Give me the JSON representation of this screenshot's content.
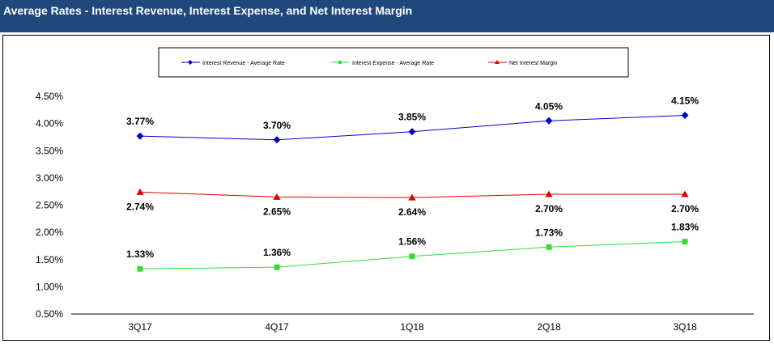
{
  "header": {
    "title": "Average Rates - Interest Revenue, Interest Expense, and Net Interest Margin"
  },
  "chart_data": {
    "type": "line",
    "title": "Average Rates - Interest Revenue, Interest Expense, and Net Interest Margin",
    "categories": [
      "3Q17",
      "4Q17",
      "1Q18",
      "2Q18",
      "3Q18"
    ],
    "ylim": [
      0.5,
      4.5
    ],
    "yticks": [
      "0.50%",
      "1.00%",
      "1.50%",
      "2.00%",
      "2.50%",
      "3.00%",
      "3.50%",
      "4.00%",
      "4.50%"
    ],
    "grid": false,
    "legend_position": "top",
    "series": [
      {
        "name": "Interest Revenue - Average Rate",
        "color": "#0000CC",
        "marker": "diamond",
        "label_pos": "above",
        "values": [
          3.77,
          3.7,
          3.85,
          4.05,
          4.15
        ],
        "labels": [
          "3.77%",
          "3.70%",
          "3.85%",
          "4.05%",
          "4.15%"
        ]
      },
      {
        "name": "Interest Expense - Average Rate",
        "color": "#33DD33",
        "marker": "square",
        "label_pos": "above",
        "values": [
          1.33,
          1.36,
          1.56,
          1.73,
          1.83
        ],
        "labels": [
          "1.33%",
          "1.36%",
          "1.56%",
          "1.73%",
          "1.83%"
        ]
      },
      {
        "name": "Net Interest Margin",
        "color": "#DD0000",
        "marker": "triangle",
        "label_pos": "below",
        "values": [
          2.74,
          2.65,
          2.64,
          2.7,
          2.7
        ],
        "labels": [
          "2.74%",
          "2.65%",
          "2.64%",
          "2.70%",
          "2.70%"
        ]
      }
    ]
  }
}
